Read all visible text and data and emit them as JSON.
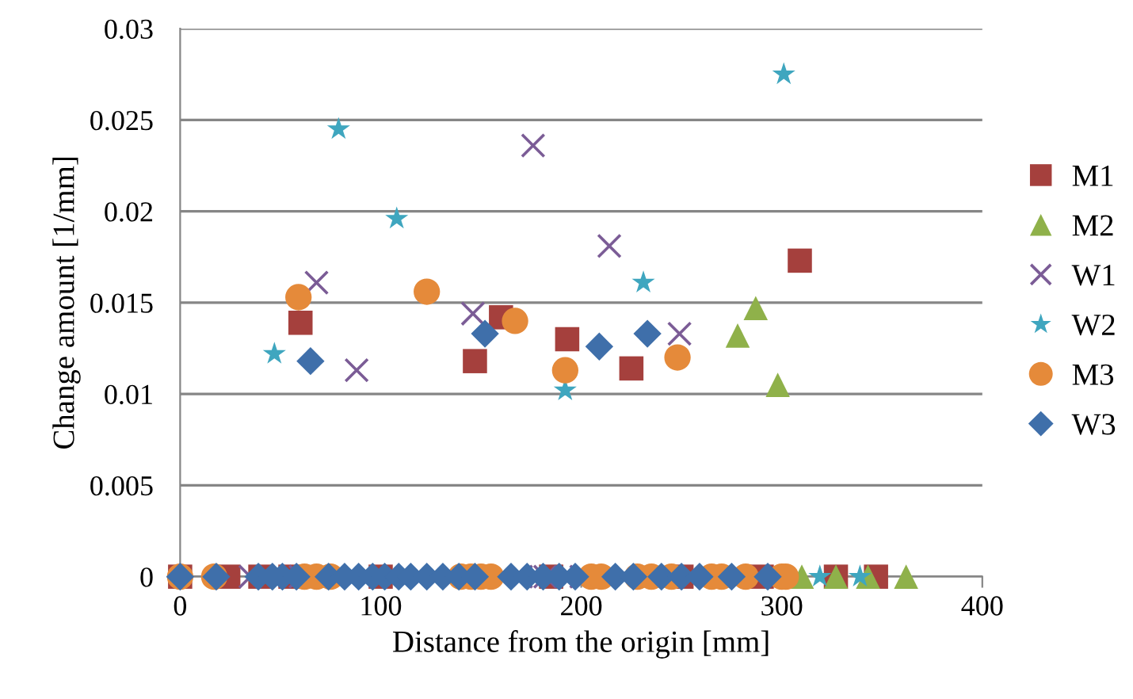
{
  "chart_data": {
    "type": "scatter",
    "xlabel": "Distance from the origin [mm]",
    "ylabel": "Change amount [1/mm]",
    "xlim": [
      0,
      400
    ],
    "xticks": [
      0,
      100,
      200,
      300,
      400
    ],
    "ylim": [
      0,
      0.03
    ],
    "yticks": [
      0,
      0.005,
      0.01,
      0.015,
      0.02,
      0.025,
      0.03
    ],
    "grid": "y",
    "legend": "right",
    "series": [
      {
        "name": "M1",
        "color": "#a5403d",
        "marker": "square",
        "x": [
          0,
          24,
          40,
          55,
          60,
          100,
          147,
          160,
          185,
          193,
          225,
          250,
          290,
          309,
          327,
          347
        ],
        "values": [
          0,
          0,
          0,
          0,
          0.0139,
          0,
          0.0118,
          0.0142,
          0,
          0.013,
          0.0114,
          0,
          0,
          0.0173,
          0,
          0
        ]
      },
      {
        "name": "M2",
        "color": "#8fb14a",
        "marker": "triangle",
        "x": [
          278,
          287,
          298,
          310,
          327,
          343,
          362
        ],
        "values": [
          0.0132,
          0.0147,
          0.0105,
          0,
          0,
          0,
          0
        ]
      },
      {
        "name": "W1",
        "color": "#7b5c96",
        "marker": "cross",
        "x": [
          35,
          60,
          68,
          88,
          146,
          170,
          176,
          182,
          200,
          214,
          249
        ],
        "values": [
          0,
          0,
          0.0161,
          0.0113,
          0.0144,
          0,
          0.0236,
          0,
          0,
          0.0181,
          0.0133
        ]
      },
      {
        "name": "W2",
        "color": "#3fa6bf",
        "marker": "star",
        "x": [
          47,
          79,
          108,
          192,
          231,
          301,
          319,
          339
        ],
        "values": [
          0.0122,
          0.0245,
          0.0196,
          0.0102,
          0.0161,
          0.0275,
          0,
          0
        ]
      },
      {
        "name": "M3",
        "color": "#e58a3a",
        "marker": "circle",
        "x": [
          0,
          17,
          59,
          62,
          68,
          75,
          123,
          140,
          145,
          150,
          155,
          167,
          192,
          205,
          210,
          228,
          235,
          245,
          248,
          265,
          270,
          282,
          300,
          302
        ],
        "values": [
          0,
          0,
          0.0153,
          0,
          0,
          0,
          0.0156,
          0,
          0,
          0,
          0,
          0.014,
          0.0113,
          0,
          0,
          0,
          0,
          0,
          0.012,
          0,
          0,
          0,
          0,
          0
        ]
      },
      {
        "name": "W3",
        "color": "#3f6faa",
        "marker": "diamond",
        "x": [
          0,
          18,
          39,
          46,
          51,
          58,
          65,
          74,
          82,
          89,
          96,
          102,
          109,
          115,
          123,
          131,
          139,
          147,
          152,
          165,
          173,
          181,
          189,
          197,
          209,
          217,
          226,
          233,
          240,
          250,
          259,
          275,
          293
        ],
        "values": [
          0,
          0,
          0,
          0,
          0,
          0,
          0.0118,
          0,
          0,
          0,
          0,
          0,
          0,
          0,
          0,
          0,
          0,
          0,
          0.0133,
          0,
          0,
          0,
          0,
          0,
          0.0126,
          0,
          0,
          0.0133,
          0,
          0,
          0,
          0,
          0
        ]
      }
    ]
  }
}
